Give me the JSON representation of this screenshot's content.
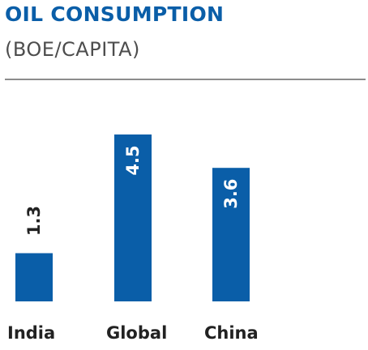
{
  "chart_data": {
    "type": "bar",
    "title": "OIL CONSUMPTION",
    "subtitle": "(BOE/CAPITA)",
    "categories": [
      "India",
      "Global",
      "China"
    ],
    "values": [
      1.3,
      4.5,
      3.6
    ],
    "value_labels": [
      "1.3",
      "4.5",
      "3.6"
    ],
    "xlabel": "",
    "ylabel": "",
    "ylim": [
      0,
      4.5
    ],
    "grid": false,
    "legend": "none",
    "bar_color": "#0a5ea8",
    "title_color": "#0a5ea8"
  }
}
